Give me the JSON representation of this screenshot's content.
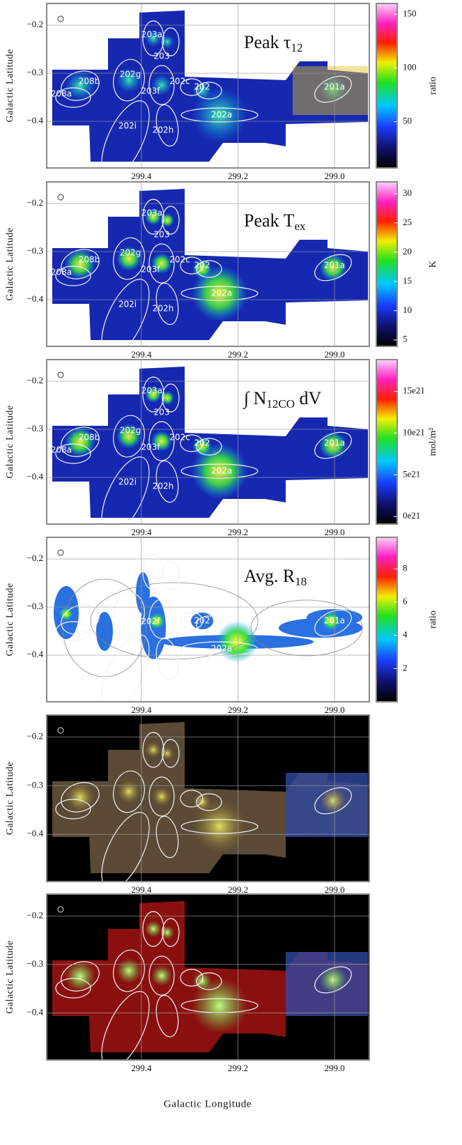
{
  "chart_data": [
    {
      "type": "image",
      "title": {
        "text": "Peak τ",
        "sub": "12"
      },
      "ylabel": "Galactic Latitude",
      "background": "#ffffff",
      "xlim": [
        299.596,
        298.928
      ],
      "ylim": [
        -0.497,
        -0.155
      ],
      "xticks": [
        299.4,
        299.2,
        {
          "value": 299,
          "label": "299.0"
        }
      ],
      "yticks": [
        {
          "value": -0.2,
          "label": "−0.2"
        },
        {
          "value": -0.3,
          "label": "−0.3"
        },
        {
          "value": -0.4,
          "label": "−0.4"
        }
      ],
      "grid": true,
      "colorbar": {
        "label": "ratio",
        "lim": [
          7,
          160
        ],
        "ticks": [
          50,
          100,
          150
        ]
      },
      "annotations": [
        "208b",
        "208a",
        "202g",
        "203f",
        "202c",
        "202",
        "202a",
        "201a",
        "202i",
        "202h",
        "203a",
        "203"
      ]
    },
    {
      "type": "image",
      "title": {
        "text": "Peak T",
        "sub": "ex"
      },
      "ylabel": "Galactic Latitude",
      "background": "#ffffff",
      "xlim": [
        299.596,
        298.928
      ],
      "ylim": [
        -0.497,
        -0.155
      ],
      "xticks": [
        299.4,
        299.2,
        {
          "value": 299,
          "label": "299.0"
        }
      ],
      "yticks": [
        {
          "value": -0.2,
          "label": "−0.2"
        },
        {
          "value": -0.3,
          "label": "−0.3"
        },
        {
          "value": -0.4,
          "label": "−0.4"
        }
      ],
      "grid": true,
      "colorbar": {
        "label": "K",
        "lim": [
          3.9,
          32
        ],
        "ticks": [
          5,
          10,
          15,
          20,
          25,
          30
        ]
      },
      "annotations": [
        "208b",
        "208a",
        "202g",
        "203f",
        "202c",
        "202",
        "202a",
        "201a",
        "202i",
        "202h",
        "203a",
        "203"
      ]
    },
    {
      "type": "image",
      "title": {
        "text": "∫ N",
        "sub": "12CO",
        "after": " dV"
      },
      "ylabel": "Galactic Latitude",
      "background": "#ffffff",
      "xlim": [
        299.596,
        298.928
      ],
      "ylim": [
        -0.497,
        -0.155
      ],
      "xticks": [
        299.4,
        299.2,
        {
          "value": 299,
          "label": "299.0"
        }
      ],
      "yticks": [
        {
          "value": -0.2,
          "label": "−0.2"
        },
        {
          "value": -0.3,
          "label": "−0.3"
        },
        {
          "value": -0.4,
          "label": "−0.4"
        }
      ],
      "grid": true,
      "colorbar": {
        "label": "mol/m²",
        "lim": [
          -9e+20,
          1.88e+22
        ],
        "ticks": [
          {
            "value": 0,
            "label": "0e21"
          },
          {
            "value": 5e+21,
            "label": "5e21"
          },
          {
            "value": 1e+22,
            "label": "10e21"
          },
          {
            "value": 1.5e+22,
            "label": "15e21"
          }
        ]
      },
      "annotations": [
        "208b",
        "208a",
        "202g",
        "203f",
        "202c",
        "202",
        "202a",
        "201a",
        "202i",
        "202h",
        "203a",
        "203"
      ]
    },
    {
      "type": "image",
      "title": {
        "text": "Avg. R",
        "sub": "18"
      },
      "ylabel": "Galactic Latitude",
      "background": "#ffffff",
      "xlim": [
        299.596,
        298.928
      ],
      "ylim": [
        -0.497,
        -0.155
      ],
      "xticks": [
        299.4,
        299.2,
        {
          "value": 299,
          "label": "299.0"
        }
      ],
      "yticks": [
        {
          "value": -0.2,
          "label": "−0.2"
        },
        {
          "value": -0.3,
          "label": "−0.3"
        },
        {
          "value": -0.4,
          "label": "−0.4"
        }
      ],
      "grid": true,
      "colorbar": {
        "label": "ratio",
        "lim": [
          0,
          9.9
        ],
        "ticks": [
          2,
          4,
          6,
          8
        ]
      },
      "annotations": [
        "202f",
        "202",
        "202a",
        "201a"
      ]
    },
    {
      "type": "image",
      "ylabel": "Galactic Latitude",
      "background": "#000000",
      "xlim": [
        299.596,
        298.928
      ],
      "ylim": [
        -0.497,
        -0.155
      ],
      "xticks": [
        299.4,
        299.2,
        {
          "value": 299,
          "label": "299.0"
        }
      ],
      "yticks": [
        {
          "value": -0.2,
          "label": "−0.2"
        },
        {
          "value": -0.3,
          "label": "−0.3"
        },
        {
          "value": -0.4,
          "label": "−0.4"
        }
      ],
      "grid": true
    },
    {
      "type": "image",
      "ylabel": "Galactic Latitude",
      "xlabel": "Galactic Longitude",
      "background": "#000000",
      "xlim": [
        299.596,
        298.928
      ],
      "ylim": [
        -0.497,
        -0.155
      ],
      "xticks": [
        299.4,
        299.2,
        {
          "value": 299,
          "label": "299.0"
        }
      ],
      "yticks": [
        {
          "value": -0.2,
          "label": "−0.2"
        },
        {
          "value": -0.3,
          "label": "−0.3"
        },
        {
          "value": -0.4,
          "label": "−0.4"
        }
      ],
      "grid": true
    }
  ]
}
